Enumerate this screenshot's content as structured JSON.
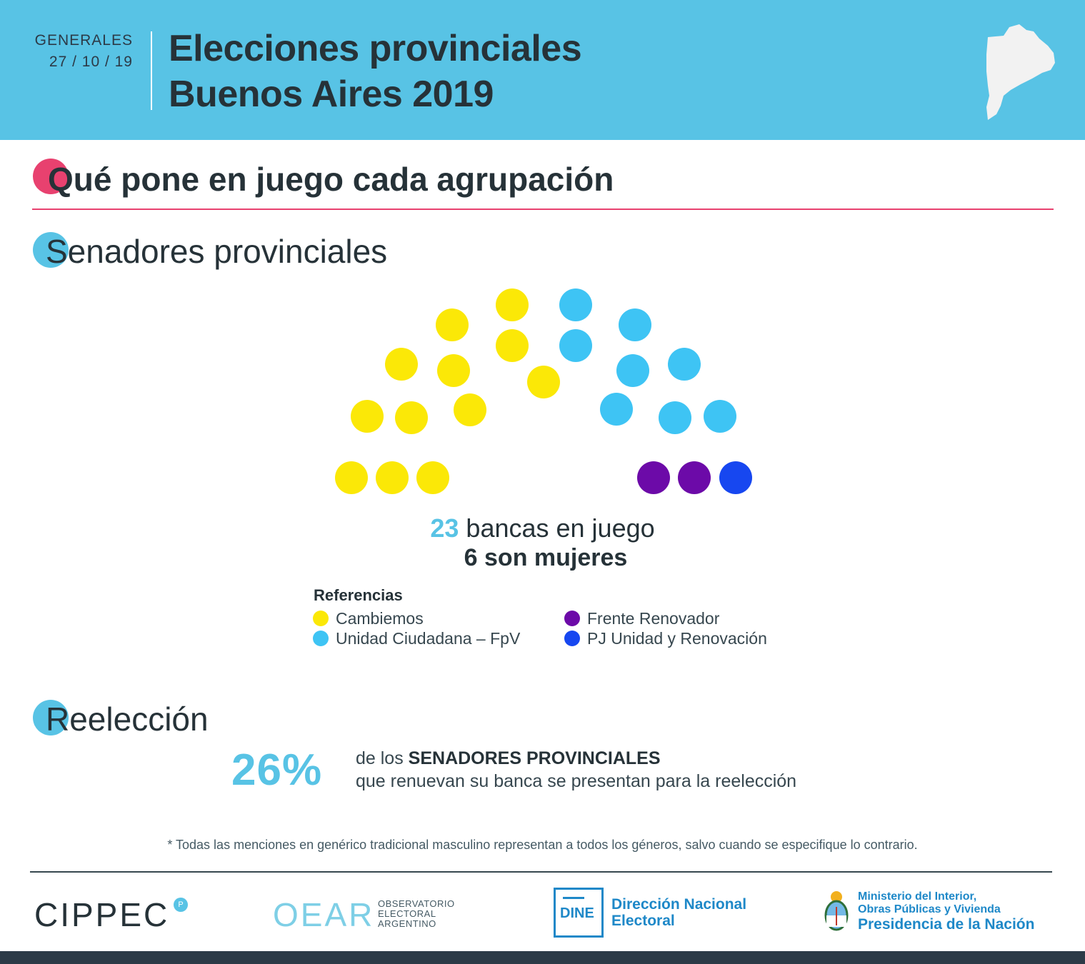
{
  "header": {
    "label": "GENERALES",
    "date": "27 / 10 / 19",
    "title_line1": "Elecciones provinciales",
    "title_line2": "Buenos Aires 2019"
  },
  "section_title": "Qué pone en juego cada agrupación",
  "senators": {
    "title": "Senadores provinciales",
    "seats_count": "23",
    "seats_text": "bancas en juego",
    "women_text": "6 son mujeres"
  },
  "legend": {
    "title": "Referencias",
    "items": [
      {
        "label": "Cambiemos",
        "color": "#fbe807"
      },
      {
        "label": "Unidad Ciudadana – FpV",
        "color": "#3ec4f4"
      },
      {
        "label": "Frente Renovador",
        "color": "#6c0aa8"
      },
      {
        "label": "PJ Unidad y Renovación",
        "color": "#1747f0"
      }
    ]
  },
  "reelection": {
    "title": "Reelección",
    "percent": "26%",
    "line1_prefix": "de los",
    "line1_bold": "SENADORES PROVINCIALES",
    "line2": "que renuevan su banca se presentan para la reelección"
  },
  "footnote": "* Todas las menciones en genérico tradicional masculino representan a todos los géneros, salvo cuando se especifique lo contrario.",
  "logos": {
    "cippec": "CIPPEC",
    "cippec_badge": "P",
    "oear": "OEAR",
    "oear_line1": "OBSERVATORIO",
    "oear_line2": "ELECTORAL",
    "oear_line3": "ARGENTINO",
    "dine_abbr": "DINE",
    "dine_line1": "Dirección Nacional",
    "dine_line2": "Electoral",
    "ministry_line1": "Ministerio del Interior,",
    "ministry_line2": "Obras Públicas y Vivienda",
    "ministry_line3": "Presidencia de la Nación"
  },
  "colors": {
    "header_bg": "#58c3e5",
    "pink": "#e8416f",
    "accent": "#58c3e5",
    "dark": "#263238"
  },
  "chart_data": {
    "type": "hemicycle",
    "title": "Senadores provinciales",
    "total_seats": 23,
    "women": 6,
    "series": [
      {
        "name": "Cambiemos",
        "seats": 12,
        "color": "#fbe807"
      },
      {
        "name": "Unidad Ciudadana – FpV",
        "seats": 8,
        "color": "#3ec4f4"
      },
      {
        "name": "Frente Renovador",
        "seats": 2,
        "color": "#6c0aa8"
      },
      {
        "name": "PJ Unidad y Renovación",
        "seats": 1,
        "color": "#1747f0"
      }
    ]
  }
}
